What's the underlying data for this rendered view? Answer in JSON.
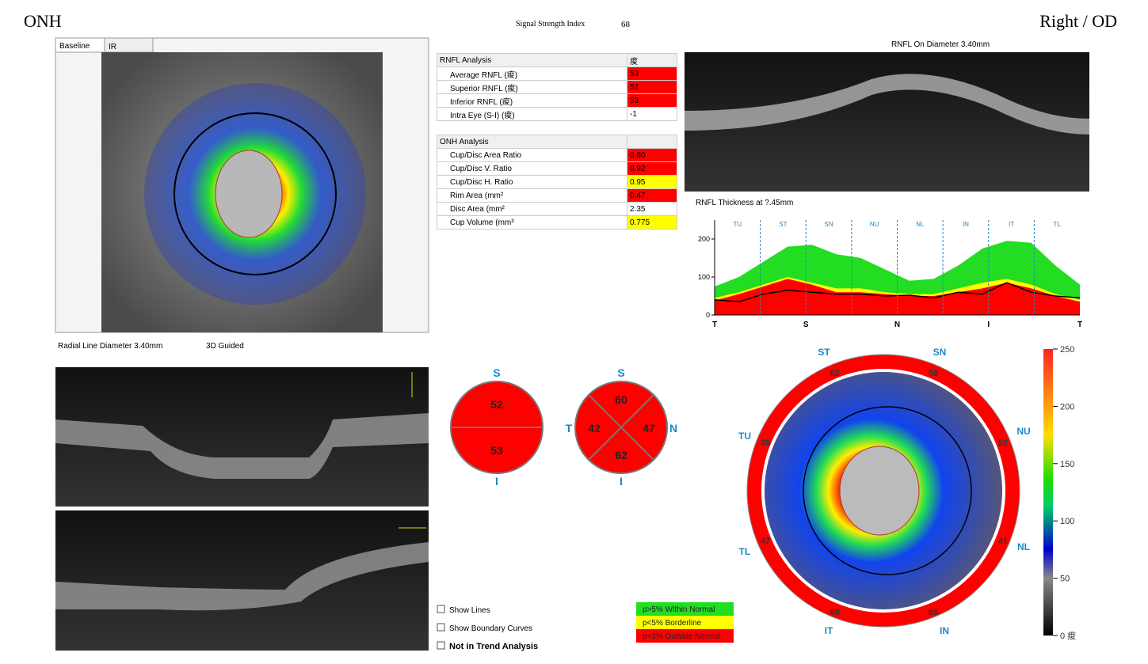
{
  "header": {
    "title": "ONH",
    "signal_label": "Signal Strength Index",
    "signal_value": "68",
    "eye": "Right / OD"
  },
  "tabs": [
    "Baseline",
    "IR"
  ],
  "labels": {
    "radial": "Radial Line Diameter 3.40mm",
    "guided": "3D Guided",
    "circle_scan": "RNFL On Diameter 3.40mm",
    "thickness_title": "RNFL Thickness at ?.45mm"
  },
  "rnfl_table": {
    "header": [
      "RNFL Analysis",
      "痠"
    ],
    "rows": [
      {
        "label": "Average RNFL (痠)",
        "value": "53",
        "color": "#ff0000"
      },
      {
        "label": "Superior RNFL (痠)",
        "value": "52",
        "color": "#ff0000"
      },
      {
        "label": "Inferior RNFL (痠)",
        "value": "53",
        "color": "#ff0000"
      },
      {
        "label": "Intra Eye (S-I) (痠)",
        "value": "-1",
        "color": "#ffffff"
      }
    ]
  },
  "onh_table": {
    "header": "ONH Analysis",
    "rows": [
      {
        "label": "Cup/Disc Area Ratio",
        "value": "0.80",
        "color": "#ff0000"
      },
      {
        "label": "Cup/Disc V. Ratio",
        "value": "0.92",
        "color": "#ff0000"
      },
      {
        "label": "Cup/Disc H. Ratio",
        "value": "0.95",
        "color": "#ffff00"
      },
      {
        "label": "Rim Area (mm²",
        "value": "0.47",
        "color": "#ff0000"
      },
      {
        "label": "Disc Area (mm²",
        "value": "2.35",
        "color": "#ffffff"
      },
      {
        "label": "Cup Volume (mm³",
        "value": "0.775",
        "color": "#ffff00"
      }
    ]
  },
  "thickness_chart": {
    "ylim": [
      0,
      250
    ],
    "yticks": [
      0,
      100,
      200
    ],
    "sectors": [
      "TU",
      "ST",
      "SN",
      "NU",
      "NL",
      "IN",
      "IT",
      "TL"
    ],
    "x_labels": [
      "T",
      "S",
      "N",
      "I",
      "T"
    ],
    "green": [
      75,
      100,
      140,
      180,
      185,
      160,
      150,
      120,
      90,
      95,
      130,
      175,
      195,
      190,
      130,
      80
    ],
    "yellow": [
      45,
      60,
      80,
      100,
      85,
      70,
      70,
      60,
      55,
      55,
      70,
      85,
      95,
      80,
      55,
      40
    ],
    "red": [
      38,
      55,
      75,
      95,
      80,
      60,
      60,
      55,
      50,
      50,
      60,
      70,
      85,
      70,
      50,
      35
    ],
    "measured": [
      40,
      35,
      55,
      65,
      60,
      55,
      55,
      50,
      52,
      45,
      60,
      55,
      85,
      60,
      50,
      45
    ]
  },
  "quadrants_2": {
    "labels": [
      "S",
      "I"
    ],
    "values": [
      "52",
      "53"
    ]
  },
  "quadrants_4": {
    "labels": [
      "S",
      "T",
      "N",
      "I"
    ],
    "values": [
      "60",
      "42",
      "47",
      "62"
    ]
  },
  "thickness_map": {
    "sectors": [
      "ST",
      "SN",
      "NU",
      "NL",
      "IN",
      "IT",
      "TL",
      "TU"
    ],
    "values": [
      "62",
      "58",
      "52",
      "41",
      "55",
      "68",
      "47",
      "38"
    ],
    "colorbar_lim": [
      0,
      250
    ],
    "colorbar_ticks": [
      {
        "value": 0,
        "label": "0 痠"
      },
      50,
      100,
      150,
      200,
      250
    ]
  },
  "checkboxes": [
    "Show Lines",
    "Show Boundary Curves",
    "Not in Trend Analysis"
  ],
  "legend": [
    {
      "label": "p>5% Within Normal",
      "color": "#22dd22"
    },
    {
      "label": "p<5% Borderline",
      "color": "#ffff00"
    },
    {
      "label": "p<1% Outside Normal",
      "color": "#ff0000"
    }
  ]
}
